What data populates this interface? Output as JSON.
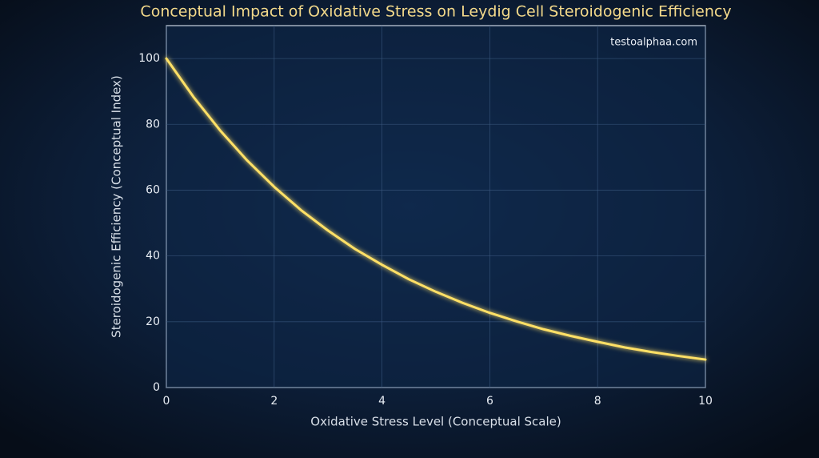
{
  "chart_data": {
    "type": "line",
    "title": "Conceptual Impact of Oxidative Stress on Leydig Cell Steroidogenic Efficiency",
    "watermark": "testoalphaa.com",
    "x_label": "Oxidative Stress Level (Conceptual Scale)",
    "y_label": "Steroidogenic Efficiency (Conceptual Index)",
    "x": [
      0,
      0.5,
      1,
      1.5,
      2,
      2.5,
      3,
      3.5,
      4,
      4.5,
      5,
      5.5,
      6,
      6.5,
      7,
      7.5,
      8,
      8.5,
      9,
      9.5,
      10
    ],
    "series": [
      {
        "color": "#ffe066",
        "values": [
          100,
          88.4,
          78.1,
          69.0,
          61.0,
          53.9,
          47.7,
          42.1,
          37.3,
          32.9,
          29.1,
          25.7,
          22.7,
          20.1,
          17.7,
          15.7,
          13.9,
          12.2,
          10.8,
          9.6,
          8.5
        ]
      }
    ],
    "xlim": [
      0,
      10
    ],
    "xticks": [
      0,
      2,
      4,
      6,
      8,
      10
    ],
    "ylim": [
      0,
      110
    ],
    "yticks": [
      0,
      20,
      40,
      60,
      80,
      100
    ],
    "grid": true
  }
}
